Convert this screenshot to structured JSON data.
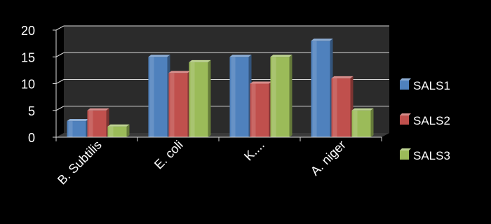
{
  "chart_data": {
    "type": "bar",
    "categories": [
      "B. Subtilis",
      "E. coli",
      "K....",
      "A. niger"
    ],
    "series": [
      {
        "name": "SALS1",
        "values": [
          3,
          15,
          15,
          18
        ]
      },
      {
        "name": "SALS2",
        "values": [
          5,
          12,
          10,
          11
        ]
      },
      {
        "name": "SALS3",
        "values": [
          2,
          14,
          15,
          5
        ]
      }
    ],
    "title": "",
    "xlabel": "",
    "ylabel": "",
    "ylim": [
      0,
      20
    ],
    "yticks": [
      0,
      5,
      10,
      15,
      20
    ],
    "grid": true,
    "legend_position": "right",
    "colors": {
      "SALS1": "#4f81bd",
      "SALS2": "#c0504d",
      "SALS3": "#9bbb59",
      "plot_background": "#2b2b2b",
      "grid": "#d9d9d9",
      "text": "#ffffff"
    }
  }
}
